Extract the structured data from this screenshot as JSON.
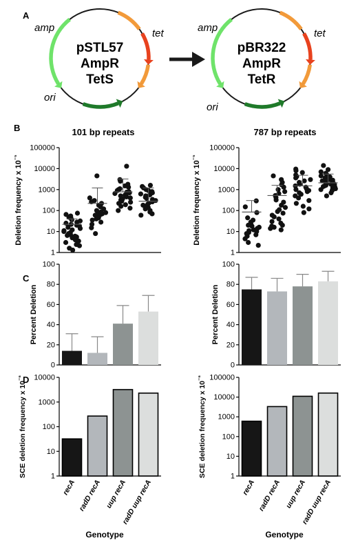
{
  "panels": {
    "A": "A",
    "B": "B",
    "C": "C",
    "D": "D"
  },
  "plasmids": {
    "left": {
      "name": "pSTL57",
      "marker1": "AmpR",
      "marker2": "TetS",
      "genes": {
        "amp": "amp",
        "tet": "tet",
        "ori": "ori"
      }
    },
    "right": {
      "name": "pBR322",
      "marker1": "AmpR",
      "marker2": "TetR",
      "genes": {
        "amp": "amp",
        "tet": "tet",
        "ori": "ori"
      }
    }
  },
  "column_titles": {
    "left": "101 bp repeats",
    "right": "787 bp repeats"
  },
  "xlabel": "Genotype",
  "colors": {
    "recA": "#161616",
    "radD recA": "#b3b7bb",
    "uup recA": "#8d9392",
    "radD uup recA": "#dcdedd",
    "amp": "#6fe36a",
    "ori": "#1f7a2a",
    "tet_light": "#f29a3a",
    "tet_red": "#e8421e"
  },
  "chart_data": [
    {
      "type": "scatter",
      "panel": "B",
      "repeat": "101 bp repeats",
      "title": "",
      "xlabel": "",
      "ylabel": "Deletion frequency x 10⁻⁵",
      "yscale": "log",
      "ylim": [
        1,
        100000
      ],
      "yticks": [
        "1",
        "10",
        "100",
        "1000",
        "10000",
        "100000"
      ],
      "categories": [
        "recA",
        "radD recA",
        "uup recA",
        "radD uup recA"
      ],
      "mean": [
        22,
        220,
        780,
        280
      ],
      "sd_upper": [
        40,
        1200,
        3200,
        1200
      ],
      "series": [
        {
          "values": [
            1.3,
            1.6,
            2.1,
            2.4,
            3,
            3.5,
            4,
            4.5,
            5,
            5.5,
            6,
            6.5,
            7,
            8,
            9,
            10,
            11,
            12,
            14,
            16,
            18,
            20,
            22,
            25,
            28,
            32,
            36,
            42,
            48,
            55,
            65,
            75
          ]
        },
        {
          "values": [
            8,
            15,
            22,
            28,
            35,
            40,
            45,
            50,
            55,
            60,
            65,
            70,
            75,
            80,
            85,
            100,
            120,
            150,
            180,
            220,
            260,
            300,
            400,
            4500
          ]
        },
        {
          "values": [
            100,
            130,
            160,
            190,
            220,
            250,
            280,
            320,
            360,
            400,
            450,
            500,
            550,
            600,
            650,
            700,
            750,
            800,
            900,
            1000,
            1100,
            1300,
            1500,
            1800,
            2500,
            3000,
            13000
          ]
        },
        {
          "values": [
            60,
            70,
            85,
            100,
            120,
            140,
            160,
            180,
            200,
            230,
            260,
            300,
            340,
            380,
            430,
            500,
            560,
            620,
            700,
            800,
            900,
            1000,
            1200,
            1400,
            1600
          ]
        }
      ]
    },
    {
      "type": "scatter",
      "panel": "B",
      "repeat": "787 bp repeats",
      "title": "",
      "xlabel": "",
      "ylabel": "Deletion frequency x 10⁻⁵",
      "yscale": "log",
      "ylim": [
        1,
        100000
      ],
      "yticks": [
        "1",
        "10",
        "100",
        "1000",
        "10000",
        "100000"
      ],
      "categories": [
        "recA",
        "radD recA",
        "uup recA",
        "radD uup recA"
      ],
      "mean": [
        85,
        520,
        1500,
        2100
      ],
      "sd_upper": [
        300,
        1600,
        4800,
        5500
      ],
      "series": [
        {
          "values": [
            2.2,
            3,
            4.5,
            6,
            7,
            8,
            9,
            10,
            11,
            12,
            14,
            16,
            18,
            20,
            24,
            28,
            35,
            45,
            80,
            150,
            290
          ]
        },
        {
          "values": [
            12,
            14,
            16,
            18,
            20,
            25,
            30,
            40,
            50,
            60,
            75,
            90,
            110,
            140,
            180,
            250,
            320,
            420,
            520,
            650,
            800,
            1000,
            1300,
            1700,
            2200,
            3000,
            4500
          ]
        },
        {
          "values": [
            80,
            120,
            160,
            220,
            300,
            400,
            500,
            600,
            700,
            800,
            900,
            1000,
            1100,
            1300,
            1500,
            1800,
            2200,
            2600,
            3000,
            3600,
            4200,
            5000,
            6500,
            8000,
            9500
          ]
        },
        {
          "values": [
            500,
            700,
            900,
            1000,
            1100,
            1200,
            1300,
            1400,
            1500,
            1600,
            1700,
            1800,
            1900,
            2000,
            2200,
            2400,
            2600,
            2800,
            3000,
            3300,
            3600,
            4000,
            4500,
            5000,
            6000,
            7000,
            9000,
            14000
          ]
        }
      ]
    },
    {
      "type": "bar",
      "panel": "C",
      "repeat": "101 bp repeats",
      "title": "",
      "xlabel": "",
      "ylabel": "Percent Deletion",
      "ylim": [
        0,
        100
      ],
      "yticks": [
        "0",
        "20",
        "40",
        "60",
        "80",
        "100"
      ],
      "categories": [
        "recA",
        "radD recA",
        "uup recA",
        "radD uup recA"
      ],
      "values": [
        14,
        12,
        41,
        53
      ],
      "error_upper": [
        31,
        28,
        59,
        69
      ]
    },
    {
      "type": "bar",
      "panel": "C",
      "repeat": "787 bp repeats",
      "title": "",
      "xlabel": "",
      "ylabel": "Percent Deletion",
      "ylim": [
        0,
        100
      ],
      "yticks": [
        "0",
        "20",
        "40",
        "60",
        "80",
        "100"
      ],
      "categories": [
        "recA",
        "radD recA",
        "uup recA",
        "radD uup recA"
      ],
      "values": [
        75,
        73,
        78,
        83
      ],
      "error_upper": [
        87,
        86,
        90,
        93
      ]
    },
    {
      "type": "bar",
      "panel": "D",
      "repeat": "101 bp repeats",
      "title": "",
      "xlabel": "Genotype",
      "ylabel": "SCE deletion frequency x 10⁻⁶",
      "yscale": "log",
      "ylim": [
        1,
        10000
      ],
      "yticks": [
        "1",
        "10",
        "100",
        "1000",
        "10000"
      ],
      "categories": [
        "recA",
        "radD recA",
        "uup recA",
        "radD uup recA"
      ],
      "values": [
        32,
        270,
        3200,
        2300
      ]
    },
    {
      "type": "bar",
      "panel": "D",
      "repeat": "787 bp repeats",
      "title": "",
      "xlabel": "Genotype",
      "ylabel": "SCE deletion frequency x 10⁻⁶",
      "yscale": "log",
      "ylim": [
        1,
        100000
      ],
      "yticks": [
        "1",
        "10",
        "100",
        "1000",
        "10000",
        "100000"
      ],
      "categories": [
        "recA",
        "radD recA",
        "uup recA",
        "radD uup recA"
      ],
      "values": [
        600,
        3300,
        11000,
        16000
      ]
    }
  ]
}
